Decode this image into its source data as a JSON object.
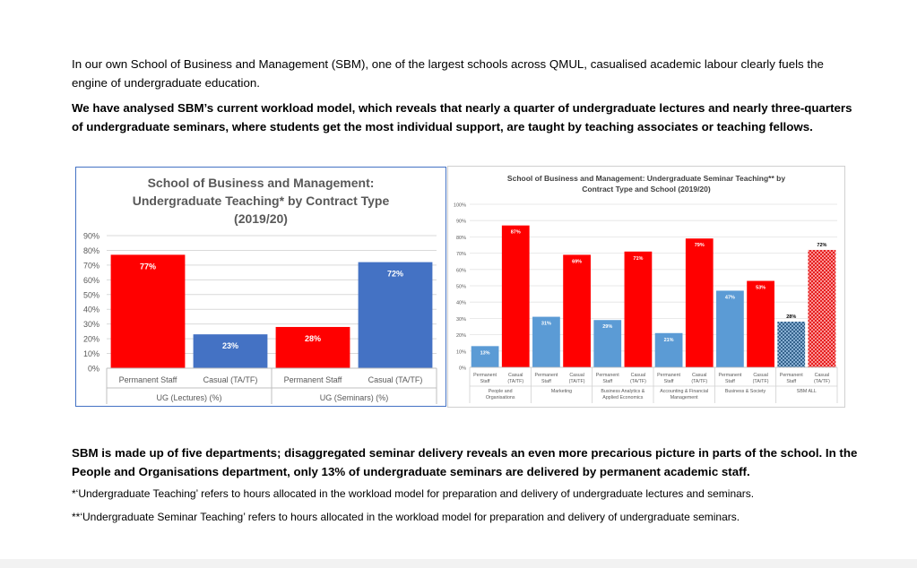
{
  "intro_text": "In our own School of Business and Management (SBM), one of the largest schools across QMUL, casualised academic labour clearly fuels the engine of undergraduate education.",
  "bold_text_1": "We have analysed SBM’s current workload model, which reveals that nearly a quarter of undergraduate lectures and nearly three-quarters of undergraduate seminars, where students get the most individual support, are taught by teaching associates or teaching fellows.",
  "bold_text_2": "SBM is made up of five departments; disaggregated seminar delivery reveals an even more precarious picture in parts of the school. In the People and Organisations department, only 13% of undergraduate seminars are delivered by permanent academic staff.",
  "footnote_1": "*‘Undergraduate Teaching’ refers to hours allocated in the workload model for preparation and delivery of undergraduate lectures and seminars.",
  "footnote_2": "**‘Undergraduate Seminar Teaching’ refers to hours allocated in the workload model for preparation and delivery of undergraduate seminars.",
  "chart_data": [
    {
      "type": "bar",
      "title": [
        "School of Business and Management:",
        "Undergraduate Teaching* by Contract Type",
        "(2019/20)"
      ],
      "ylim": [
        0,
        90
      ],
      "yticks": [
        "0%",
        "10%",
        "20%",
        "30%",
        "40%",
        "50%",
        "60%",
        "70%",
        "80%",
        "90%"
      ],
      "grid": true,
      "categories": [
        "Permanent Staff",
        "Casual (TA/TF)",
        "Permanent Staff",
        "Casual (TA/TF)"
      ],
      "groups": [
        "UG (Lectures) (%)",
        "UG (Seminars) (%)"
      ],
      "values": [
        77,
        23,
        28,
        72
      ],
      "labels": [
        "77%",
        "23%",
        "28%",
        "72%"
      ],
      "colors": [
        "#ff0000",
        "#4472c4",
        "#ff0000",
        "#4472c4"
      ]
    },
    {
      "type": "bar",
      "title": [
        "School of Business and Management: Undergraduate Seminar Teaching** by",
        "Contract Type and School (2019/20)"
      ],
      "ylim": [
        0,
        100
      ],
      "yticks": [
        "0%",
        "10%",
        "20%",
        "30%",
        "40%",
        "50%",
        "60%",
        "70%",
        "80%",
        "90%",
        "100%"
      ],
      "grid": true,
      "categories": [
        [
          "Permanent",
          "Staff"
        ],
        [
          "Casual",
          "(TA/TF)"
        ]
      ],
      "groups": [
        {
          "name": [
            "People and",
            "Organisations"
          ],
          "values": [
            13,
            87
          ],
          "labels": [
            "13%",
            "87%"
          ]
        },
        {
          "name": [
            "Marketing"
          ],
          "values": [
            31,
            69
          ],
          "labels": [
            "31%",
            "69%"
          ]
        },
        {
          "name": [
            "Business Analytics &",
            "Applied Economics"
          ],
          "values": [
            29,
            71
          ],
          "labels": [
            "29%",
            "71%"
          ]
        },
        {
          "name": [
            "Accounting & Financial",
            "Management"
          ],
          "values": [
            21,
            79
          ],
          "labels": [
            "21%",
            "79%"
          ]
        },
        {
          "name": [
            "Business & Society"
          ],
          "values": [
            47,
            53
          ],
          "labels": [
            "47%",
            "53%"
          ]
        },
        {
          "name": [
            "SBM ALL"
          ],
          "values": [
            28,
            72
          ],
          "labels": [
            "28%",
            "72%"
          ]
        }
      ],
      "colors": {
        "permanent": "#5b9bd5",
        "casual": "#ff0000",
        "permanent_all": "#1f4e79",
        "casual_all": "#c00000"
      }
    }
  ]
}
